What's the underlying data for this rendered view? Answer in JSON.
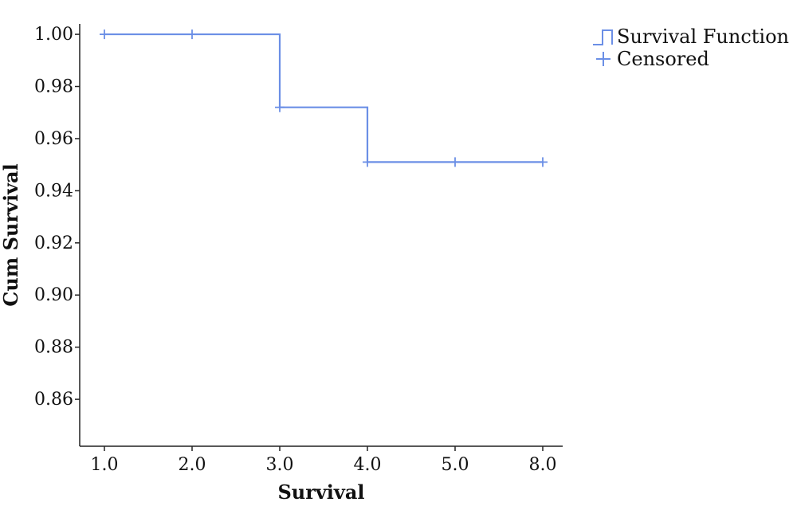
{
  "chart_data": {
    "type": "line",
    "title": "",
    "xlabel": "Survival",
    "ylabel": "Cum Survival",
    "x_categories": [
      "1.0",
      "2.0",
      "3.0",
      "4.0",
      "5.0",
      "8.0"
    ],
    "y_ticks": [
      {
        "value": 1.0,
        "label": "1.00"
      },
      {
        "value": 0.98,
        "label": "0.98"
      },
      {
        "value": 0.96,
        "label": "0.96"
      },
      {
        "value": 0.94,
        "label": "0.94"
      },
      {
        "value": 0.92,
        "label": "0.92"
      },
      {
        "value": 0.9,
        "label": "0.90"
      },
      {
        "value": 0.88,
        "label": "0.88"
      },
      {
        "value": 0.86,
        "label": "0.86"
      }
    ],
    "ylim": [
      0.842,
      1.004
    ],
    "grid": false,
    "legend_position": "top-right",
    "legend": [
      {
        "name": "Survival Function",
        "symbol": "step"
      },
      {
        "name": "Censored",
        "symbol": "plus"
      }
    ],
    "series": [
      {
        "name": "Survival Function",
        "step_points": [
          {
            "x": "1.0",
            "y": 1.0
          },
          {
            "x": "3.0",
            "y": 1.0
          },
          {
            "x": "3.0",
            "y": 0.972
          },
          {
            "x": "4.0",
            "y": 0.972
          },
          {
            "x": "4.0",
            "y": 0.951
          },
          {
            "x": "8.0",
            "y": 0.951
          }
        ]
      },
      {
        "name": "Censored",
        "points": [
          {
            "x": "1.0",
            "y": 1.0
          },
          {
            "x": "2.0",
            "y": 1.0
          },
          {
            "x": "3.0",
            "y": 0.972
          },
          {
            "x": "4.0",
            "y": 0.951
          },
          {
            "x": "5.0",
            "y": 0.951
          },
          {
            "x": "8.0",
            "y": 0.951
          }
        ]
      }
    ],
    "colors": {
      "line": "#6b8fe6",
      "axis": "#222222"
    }
  }
}
